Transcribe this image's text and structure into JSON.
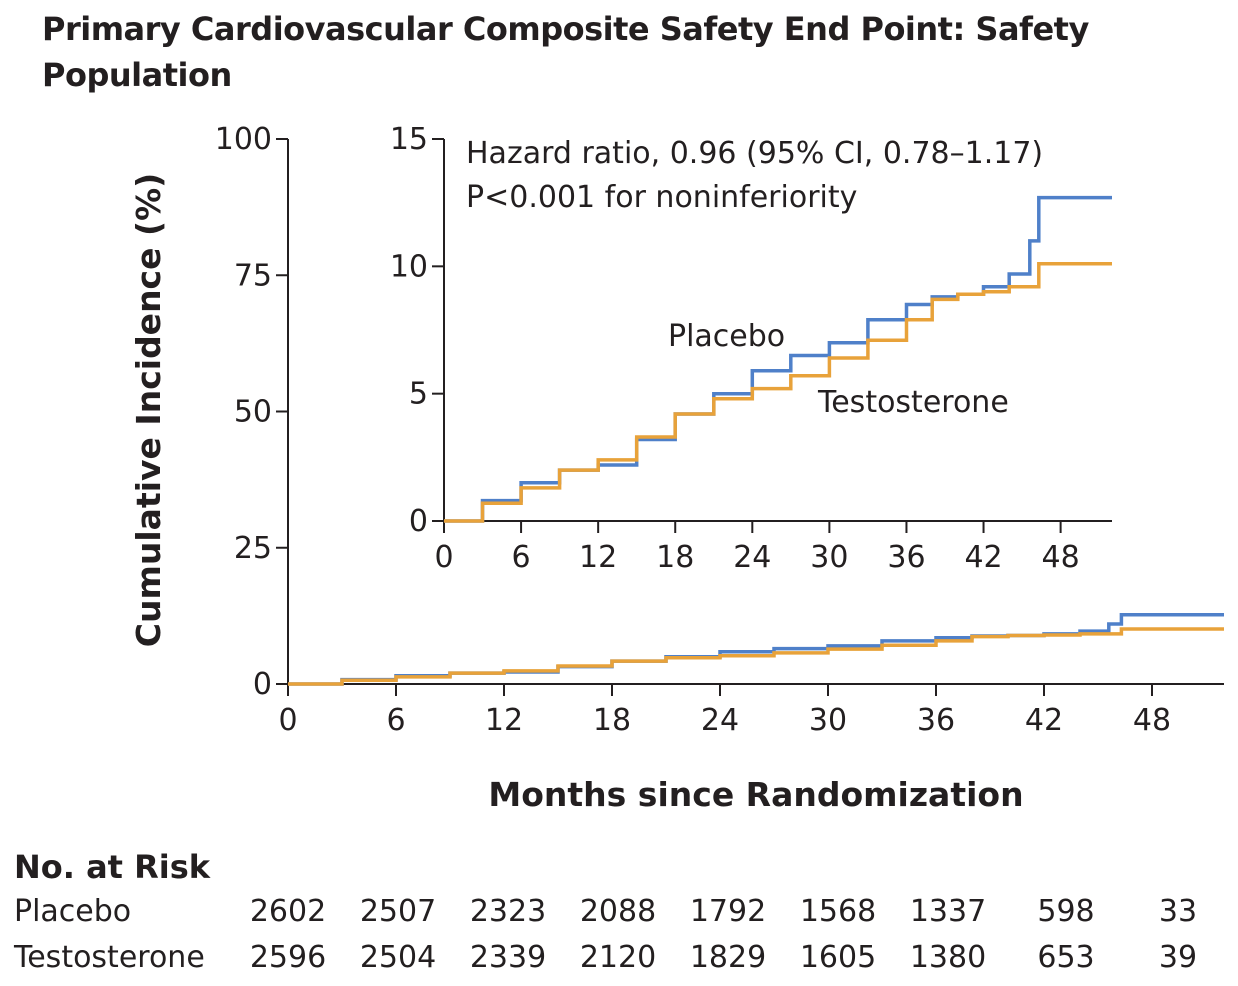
{
  "title": "Primary Cardiovascular Composite Safety End Point: Safety Population",
  "chart_data": [
    {
      "type": "line",
      "xlabel": "Months since Randomization",
      "ylabel": "Cumulative Incidence (%)",
      "xlim": [
        0,
        52
      ],
      "ylim": [
        0,
        100
      ],
      "xticks": [
        0,
        6,
        12,
        18,
        24,
        30,
        36,
        42,
        48
      ],
      "yticks": [
        0,
        25,
        50,
        75,
        100
      ],
      "series": [
        {
          "name": "Placebo",
          "color": "#4f80c9",
          "x": [
            0,
            3,
            6,
            9,
            12,
            15,
            18,
            21,
            24,
            27,
            30,
            33,
            36,
            38,
            40,
            42,
            44,
            45.2,
            45.6,
            46.3,
            52
          ],
          "y": [
            0,
            0.8,
            1.5,
            2.0,
            2.2,
            3.2,
            4.2,
            5.0,
            5.9,
            6.5,
            7.0,
            7.9,
            8.5,
            8.8,
            8.9,
            9.2,
            9.7,
            9.7,
            11.0,
            12.7,
            12.7
          ]
        },
        {
          "name": "Testosterone",
          "color": "#e8a23a",
          "x": [
            0,
            3,
            6,
            9,
            12,
            15,
            18,
            21,
            24,
            27,
            30,
            33,
            36,
            38,
            40,
            42,
            44,
            46.3,
            52
          ],
          "y": [
            0,
            0.7,
            1.3,
            2.0,
            2.4,
            3.3,
            4.2,
            4.8,
            5.2,
            5.7,
            6.4,
            7.1,
            7.9,
            8.7,
            8.9,
            9.0,
            9.2,
            10.1,
            10.1
          ]
        }
      ]
    },
    {
      "type": "line",
      "xlim": [
        0,
        52
      ],
      "ylim": [
        0,
        15
      ],
      "xticks": [
        0,
        6,
        12,
        18,
        24,
        30,
        36,
        42,
        48
      ],
      "yticks": [
        0,
        5,
        10,
        15
      ],
      "annotation": [
        "Hazard ratio, 0.96 (95% CI, 0.78–1.17)",
        "P<0.001 for noninferiority"
      ],
      "series_labels": [
        "Placebo",
        "Testosterone"
      ]
    }
  ],
  "risk_table": {
    "heading": "No. at Risk",
    "rows": [
      {
        "label": "Placebo",
        "values": [
          "2602",
          "2507",
          "2323",
          "2088",
          "1792",
          "1568",
          "1337",
          "598",
          "33"
        ]
      },
      {
        "label": "Testosterone",
        "values": [
          "2596",
          "2504",
          "2339",
          "2120",
          "1829",
          "1605",
          "1380",
          "653",
          "39"
        ]
      }
    ]
  }
}
